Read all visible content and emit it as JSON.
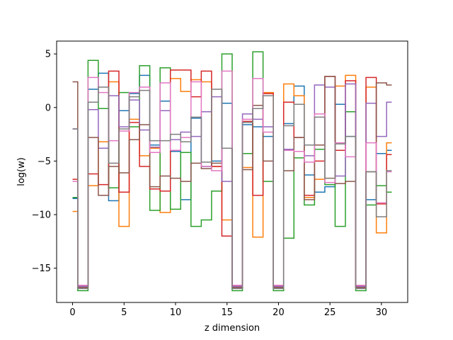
{
  "chart_data": {
    "type": "line",
    "drawstyle": "steps-mid",
    "title": "",
    "xlabel": "z dimension",
    "ylabel": "log(w)",
    "xlim": [
      -1.55,
      32.55
    ],
    "ylim": [
      -18.2,
      6.2
    ],
    "xticks": [
      0,
      5,
      10,
      15,
      20,
      25,
      30
    ],
    "yticks": [
      -15,
      -10,
      -5,
      0,
      5
    ],
    "ytick_labels": [
      "−15",
      "−10",
      "−5",
      "0",
      "5"
    ],
    "grid": false,
    "legend": false,
    "x": [
      0,
      1,
      2,
      3,
      4,
      5,
      6,
      7,
      8,
      9,
      10,
      11,
      12,
      13,
      14,
      15,
      16,
      17,
      18,
      19,
      20,
      21,
      22,
      23,
      24,
      25,
      26,
      27,
      28,
      29,
      30,
      31
    ],
    "series": [
      {
        "color": "#1f77b4",
        "values": [
          -8.5,
          -16.8,
          1.7,
          3.2,
          -8.7,
          -0.3,
          1.3,
          3.0,
          -3.5,
          0.6,
          -4.1,
          -8.6,
          -1.0,
          -5.5,
          -5.0,
          0.4,
          -16.8,
          -1.6,
          -1.8,
          -2.7,
          -16.8,
          -1.5,
          2.0,
          -6.3,
          -7.9,
          -7.4,
          0.3,
          -2.7,
          -16.8,
          -8.6,
          -4.3,
          -4.0
        ]
      },
      {
        "color": "#ff7f0e",
        "values": [
          -9.7,
          -16.7,
          -7.3,
          -3.2,
          2.4,
          -11.1,
          -1.1,
          -4.5,
          -3.8,
          -9.8,
          2.7,
          1.5,
          2.6,
          2.4,
          -5.5,
          -10.5,
          -16.7,
          -5.6,
          -12.1,
          1.4,
          -16.7,
          2.2,
          1.1,
          -8.4,
          -6.7,
          -6.6,
          2.0,
          3.0,
          -16.7,
          1.9,
          -11.7,
          -3.3
        ]
      },
      {
        "color": "#2ca02c",
        "values": [
          -8.4,
          -17.1,
          4.4,
          -0.1,
          -7.5,
          1.4,
          -1.8,
          3.9,
          -9.6,
          3.7,
          -9.5,
          -4.2,
          -11.1,
          -10.5,
          -7.8,
          5.0,
          -17.1,
          -4.3,
          5.2,
          -6.9,
          -17.1,
          -12.2,
          -4.7,
          -9.1,
          -3.9,
          -7.2,
          -11.1,
          -0.4,
          -17.1,
          -9.1,
          -7.3,
          -7.9
        ]
      },
      {
        "color": "#d62728",
        "values": [
          -6.7,
          -16.8,
          -6.2,
          -7.2,
          3.4,
          -7.9,
          -1.4,
          -5.5,
          -7.6,
          -7.8,
          3.5,
          3.5,
          1.0,
          3.4,
          -5.5,
          -12.0,
          -16.8,
          -1.3,
          -8.2,
          1.3,
          -16.8,
          0.5,
          -2.8,
          -8.2,
          -5.0,
          2.9,
          -4.0,
          2.5,
          -16.8,
          2.8,
          -9.0,
          -4.4
        ]
      },
      {
        "color": "#9467bd",
        "values": [
          -2.0,
          -16.7,
          -0.2,
          -3.8,
          1.1,
          -1.8,
          0.7,
          -2.1,
          -3.7,
          -0.3,
          -3.0,
          -2.3,
          -2.7,
          -0.4,
          1.0,
          -6.9,
          -16.7,
          -0.6,
          -1.1,
          -1.8,
          -16.7,
          -3.9,
          -4.1,
          -4.5,
          2.1,
          1.9,
          -6.4,
          2.2,
          -16.7,
          0.4,
          -2.7,
          0.5
        ]
      },
      {
        "color": "#8c564b",
        "values": [
          2.4,
          -16.8,
          -2.8,
          -8.2,
          -5.5,
          -6.1,
          -3.0,
          -1.6,
          -7.4,
          -6.4,
          -6.6,
          -6.9,
          -5.2,
          -5.7,
          -5.2,
          -3.8,
          -16.8,
          -5.8,
          0.2,
          -5.0,
          -16.8,
          -5.9,
          -2.8,
          -8.6,
          -3.5,
          2.9,
          -7.1,
          -6.9,
          -16.8,
          -6.0,
          2.3,
          2.1
        ]
      },
      {
        "color": "#e377c2",
        "values": [
          -6.9,
          -16.6,
          2.8,
          1.4,
          -3.1,
          -2.2,
          1.4,
          1.9,
          -4.2,
          2.3,
          -4.0,
          -2.8,
          2.4,
          -5.5,
          -5.9,
          3.4,
          -16.6,
          -1.1,
          2.7,
          -2.3,
          -16.6,
          -4.0,
          -4.1,
          -5.1,
          -0.6,
          -7.0,
          -3.3,
          -4.6,
          -16.6,
          -3.3,
          -8.9,
          -6.0
        ]
      },
      {
        "color": "#7f7f7f",
        "values": [
          -2.0,
          -16.9,
          0.5,
          1.9,
          -5.2,
          -2.0,
          1.0,
          1.6,
          -3.1,
          -3.1,
          -2.5,
          -3.2,
          -0.9,
          -5.1,
          1.7,
          -3.8,
          -16.9,
          -1.4,
          -0.1,
          1.1,
          -16.9,
          -1.7,
          0.3,
          -3.5,
          -0.9,
          -6.6,
          -3.4,
          -2.7,
          -16.9,
          -6.0,
          -10.2,
          -5.9
        ]
      }
    ]
  }
}
